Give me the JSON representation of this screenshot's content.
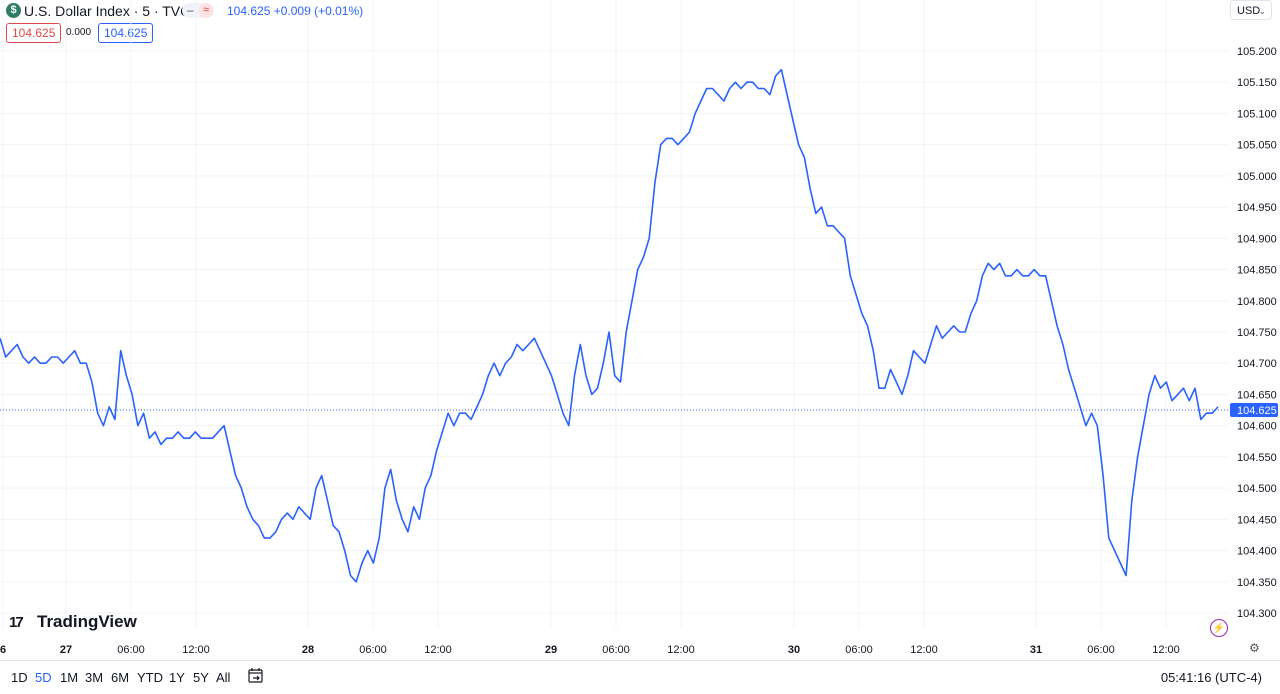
{
  "header": {
    "symbol_badge": "$",
    "title": "U.S. Dollar Index · 5 · TVC",
    "pill_dash": "–",
    "pill_wave": "≈",
    "last_price": "104.625",
    "change": "+0.009 (+0.01%)",
    "sell_price": "104.625",
    "spread": "0.000",
    "buy_price": "104.625",
    "currency": "USD"
  },
  "brand": {
    "name": "TradingView"
  },
  "colors": {
    "line": "#2962ff",
    "grid": "#f0f3fa",
    "sell": "#e04a4a",
    "buy": "#2962ff"
  },
  "icons": [
    "dollar-icon",
    "chevron-down-icon",
    "lightning-icon",
    "gear-icon",
    "compare-icon"
  ],
  "range_buttons": [
    "1D",
    "5D",
    "1M",
    "3M",
    "6M",
    "YTD",
    "1Y",
    "5Y",
    "All"
  ],
  "active_range": "5D",
  "clock": "05:41:16 (UTC-4)",
  "chart_data": {
    "type": "line",
    "title": "U.S. Dollar Index · 5 · TVC",
    "grid": true,
    "x_tick_labels": [
      "6",
      "27",
      "06:00",
      "12:00",
      "28",
      "06:00",
      "12:00",
      "29",
      "06:00",
      "12:00",
      "30",
      "06:00",
      "12:00",
      "31",
      "06:00",
      "12:00"
    ],
    "y_tick_labels": [
      "105.200",
      "105.150",
      "105.100",
      "105.050",
      "105.000",
      "104.950",
      "104.900",
      "104.850",
      "104.800",
      "104.750",
      "104.700",
      "104.650",
      "104.600",
      "104.550",
      "104.500",
      "104.450",
      "104.400",
      "104.350",
      "104.300"
    ],
    "ylim": [
      104.28,
      105.22
    ],
    "last_value": 104.625,
    "last_value_label": "104.625",
    "series": [
      {
        "values": [
          104.74,
          104.71,
          104.72,
          104.73,
          104.71,
          104.7,
          104.71,
          104.7,
          104.7,
          104.71,
          104.71,
          104.7,
          104.71,
          104.72,
          104.7,
          104.7,
          104.67,
          104.62,
          104.6,
          104.63,
          104.61,
          104.72,
          104.68,
          104.65,
          104.6,
          104.62,
          104.58,
          104.59,
          104.57,
          104.58,
          104.58,
          104.59,
          104.58,
          104.58,
          104.59,
          104.58,
          104.58,
          104.58,
          104.59,
          104.6,
          104.56,
          104.52,
          104.5,
          104.47,
          104.45,
          104.44,
          104.42,
          104.42,
          104.43,
          104.45,
          104.46,
          104.45,
          104.47,
          104.46,
          104.45,
          104.5,
          104.52,
          104.48,
          104.44,
          104.43,
          104.4,
          104.36,
          104.35,
          104.38,
          104.4,
          104.38,
          104.42,
          104.5,
          104.53,
          104.48,
          104.45,
          104.43,
          104.47,
          104.45,
          104.5,
          104.52,
          104.56,
          104.59,
          104.62,
          104.6,
          104.62,
          104.62,
          104.61,
          104.63,
          104.65,
          104.68,
          104.7,
          104.68,
          104.7,
          104.71,
          104.73,
          104.72,
          104.73,
          104.74,
          104.72,
          104.7,
          104.68,
          104.65,
          104.62,
          104.6,
          104.68,
          104.73,
          104.68,
          104.65,
          104.66,
          104.7,
          104.75,
          104.68,
          104.67,
          104.75,
          104.8,
          104.85,
          104.87,
          104.9,
          104.99,
          105.05,
          105.06,
          105.06,
          105.05,
          105.06,
          105.07,
          105.1,
          105.12,
          105.14,
          105.14,
          105.13,
          105.12,
          105.14,
          105.15,
          105.14,
          105.15,
          105.15,
          105.14,
          105.14,
          105.13,
          105.16,
          105.17,
          105.13,
          105.09,
          105.05,
          105.03,
          104.98,
          104.94,
          104.95,
          104.92,
          104.92,
          104.91,
          104.9,
          104.84,
          104.81,
          104.78,
          104.76,
          104.72,
          104.66,
          104.66,
          104.69,
          104.67,
          104.65,
          104.68,
          104.72,
          104.71,
          104.7,
          104.73,
          104.76,
          104.74,
          104.75,
          104.76,
          104.75,
          104.75,
          104.78,
          104.8,
          104.84,
          104.86,
          104.85,
          104.86,
          104.84,
          104.84,
          104.85,
          104.84,
          104.84,
          104.85,
          104.84,
          104.84,
          104.8,
          104.76,
          104.73,
          104.69,
          104.66,
          104.63,
          104.6,
          104.62,
          104.6,
          104.52,
          104.42,
          104.4,
          104.38,
          104.36,
          104.48,
          104.55,
          104.6,
          104.65,
          104.68,
          104.66,
          104.67,
          104.64,
          104.65,
          104.66,
          104.64,
          104.66,
          104.61,
          104.62,
          104.62,
          104.63
        ]
      }
    ]
  }
}
